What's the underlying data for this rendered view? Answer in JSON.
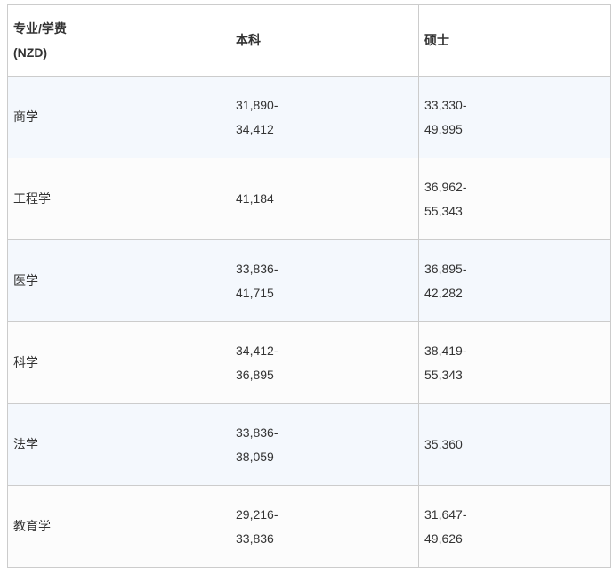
{
  "table": {
    "title_semantic": "new-zealand-tuition-by-major",
    "currency_note": "(NZD)",
    "header": {
      "major_lines": [
        "专业/学费",
        "(NZD)"
      ],
      "undergrad": "本科",
      "master": "硕士"
    },
    "rows": [
      {
        "major": [
          "商学"
        ],
        "undergrad": [
          "31,890-",
          "34,412"
        ],
        "master": [
          "33,330-",
          "49,995"
        ]
      },
      {
        "major": [
          "工程学"
        ],
        "undergrad": [
          "41,184"
        ],
        "master": [
          "36,962-",
          "55,343"
        ]
      },
      {
        "major": [
          "医学"
        ],
        "undergrad": [
          "33,836-",
          "41,715"
        ],
        "master": [
          "36,895-",
          "42,282"
        ]
      },
      {
        "major": [
          "科学"
        ],
        "undergrad": [
          "34,412-",
          "36,895"
        ],
        "master": [
          "38,419-",
          "55,343"
        ]
      },
      {
        "major": [
          "法学"
        ],
        "undergrad": [
          "33,836-",
          "38,059"
        ],
        "master": [
          "35,360"
        ]
      },
      {
        "major": [
          "教育学"
        ],
        "undergrad": [
          "29,216-",
          "33,836"
        ],
        "master": [
          "31,647-",
          "49,626"
        ]
      }
    ],
    "colors": {
      "stripe_blue": "#f4f8fd",
      "stripe_plain": "#fcfcfc",
      "header_bg": "#ffffff",
      "border": "#cccccc",
      "text": "#333333"
    }
  }
}
